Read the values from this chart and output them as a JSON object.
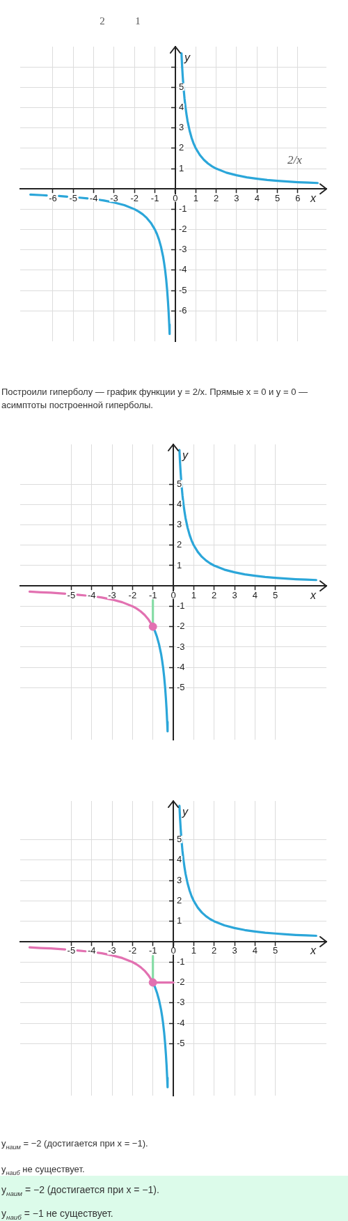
{
  "chart_data": [
    {
      "type": "other",
      "annotations": [
        "2",
        "1"
      ]
    },
    {
      "type": "line",
      "xlabel": "x",
      "ylabel": "y",
      "xlim": [
        -7.6,
        7.4
      ],
      "ylim": [
        -7.5,
        7
      ],
      "xticks": [
        -6,
        -5,
        -4,
        -3,
        -2,
        -1,
        0,
        1,
        2,
        3,
        4,
        5,
        6
      ],
      "yticks": [
        -6,
        -5,
        -4,
        -3,
        -2,
        -1,
        1,
        2,
        3,
        4,
        5,
        {
          "value": 6,
          "label": null
        }
      ],
      "grid": true,
      "series": [
        {
          "name": "2/x",
          "color": "#2ba6d9",
          "x": [
            0.3,
            0.33,
            0.36,
            0.4,
            0.45,
            0.5,
            0.55,
            0.6,
            0.7,
            0.8,
            0.9,
            1,
            1.2,
            1.4,
            1.6,
            1.8,
            2,
            2.5,
            3,
            3.5,
            4,
            4.5,
            5,
            5.5,
            6,
            6.5,
            6.97
          ],
          "values": [
            6.67,
            6.06,
            5.56,
            5,
            4.44,
            4,
            3.64,
            3.33,
            2.86,
            2.5,
            2.22,
            2,
            1.67,
            1.43,
            1.25,
            1.11,
            1,
            0.8,
            0.67,
            0.57,
            0.5,
            0.44,
            0.4,
            0.36,
            0.33,
            0.31,
            0.29
          ]
        },
        {
          "color": "#2ba6d9",
          "x": [
            -7.1,
            -6.5,
            -6.3,
            -6,
            -5.7,
            -5.3,
            -5,
            -4.7,
            -4.3,
            -4,
            -3.7,
            -3.5,
            -3,
            -2.5,
            -2,
            -1.8,
            -1.6,
            -1.4,
            -1.2,
            -1,
            -0.9,
            -0.8,
            -0.7,
            -0.6,
            -0.55,
            -0.5,
            -0.45,
            -0.4,
            -0.36,
            -0.33,
            -0.3,
            -0.28
          ],
          "values": [
            -0.28,
            -0.31,
            -0.32,
            null,
            -0.35,
            -0.38,
            null,
            -0.43,
            -0.47,
            null,
            -0.54,
            -0.57,
            -0.67,
            -0.8,
            -1,
            -1.11,
            -1.25,
            -1.43,
            -1.67,
            -2,
            -2.22,
            -2.5,
            -2.86,
            -3.33,
            -3.64,
            -4,
            -4.44,
            -5,
            -5.56,
            -6.06,
            -6.67,
            -7.14
          ]
        }
      ],
      "annotations": [
        "Построили гиперболу — график функции y = 2/x. Прямые x = 0 и y = 0 — асимптоты построенной гиперболы."
      ]
    },
    {
      "type": "line",
      "xlabel": "x",
      "ylabel": "y",
      "xlim": [
        -7.5,
        7.5
      ],
      "ylim": [
        -7.55,
        6.95
      ],
      "xticks": [
        -5,
        -4,
        -3,
        -2,
        -1,
        0,
        1,
        2,
        3,
        4,
        5
      ],
      "yticks": [
        -5,
        -4,
        -3,
        -2,
        -1,
        1,
        2,
        3,
        4,
        5
      ],
      "grid": true,
      "series": [
        {
          "color": "#86dca6",
          "x": [
            -1,
            -1
          ],
          "values": [
            -0.7,
            -2
          ]
        },
        {
          "color": "#2ba6d9",
          "x": [
            0.3,
            0.33,
            0.36,
            0.4,
            0.45,
            0.5,
            0.55,
            0.6,
            0.7,
            0.8,
            0.9,
            1,
            1.2,
            1.4,
            1.6,
            1.8,
            2,
            2.5,
            3,
            3.5,
            4,
            4.5,
            5,
            5.5,
            6,
            6.5,
            7
          ],
          "values": [
            6.67,
            6.06,
            5.56,
            5,
            4.44,
            4,
            3.64,
            3.33,
            2.86,
            2.5,
            2.22,
            2,
            1.67,
            1.43,
            1.25,
            1.11,
            1,
            0.8,
            0.67,
            0.57,
            0.5,
            0.44,
            0.4,
            0.36,
            0.33,
            0.31,
            0.29
          ]
        },
        {
          "color": "#e271b1",
          "x": [
            -7.04,
            -6.5,
            -6,
            -5.3,
            -5,
            -4.7,
            -4.3,
            -4,
            -3.7,
            -3.5,
            -3,
            -2.5,
            -2,
            -1.8,
            -1.6,
            -1.4,
            -1.2,
            -1
          ],
          "values": [
            -0.28,
            -0.31,
            -0.33,
            -0.38,
            null,
            -0.43,
            -0.47,
            null,
            -0.54,
            -0.57,
            -0.67,
            -0.8,
            -1,
            -1.11,
            -1.25,
            -1.43,
            -1.67,
            -2
          ]
        },
        {
          "color": "#2ba6d9",
          "x": [
            -1,
            -0.9,
            -0.8,
            -0.7,
            -0.6,
            -0.55,
            -0.5,
            -0.45,
            -0.4,
            -0.36,
            -0.33,
            -0.3,
            -0.28
          ],
          "values": [
            -2,
            -2.22,
            -2.5,
            -2.86,
            -3.33,
            -3.64,
            -4,
            -4.44,
            -5,
            -5.56,
            -6.06,
            -6.67,
            -7.14
          ]
        },
        {
          "type": "scatter",
          "marker": "circle",
          "color": "#e271b1",
          "x": [
            -1
          ],
          "values": [
            -2
          ]
        }
      ]
    },
    {
      "type": "line",
      "xlabel": "x",
      "ylabel": "y",
      "xlim": [
        -7.5,
        7.5
      ],
      "ylim": [
        -7.55,
        6.9
      ],
      "xticks": [
        -5,
        -4,
        -3,
        -2,
        -1,
        0,
        1,
        2,
        3,
        4,
        5
      ],
      "yticks": [
        -5,
        -4,
        -3,
        -2,
        -1,
        1,
        2,
        3,
        4,
        5
      ],
      "grid": true,
      "series": [
        {
          "color": "#86dca6",
          "x": [
            -1,
            -1
          ],
          "values": [
            -0.7,
            -2
          ]
        },
        {
          "color": "#2ba6d9",
          "x": [
            0.3,
            0.33,
            0.36,
            0.4,
            0.45,
            0.5,
            0.55,
            0.6,
            0.7,
            0.8,
            0.9,
            1,
            1.2,
            1.4,
            1.6,
            1.8,
            2,
            2.5,
            3,
            3.5,
            4,
            4.5,
            5,
            5.5,
            6,
            6.5,
            7
          ],
          "values": [
            6.67,
            6.06,
            5.56,
            5,
            4.44,
            4,
            3.64,
            3.33,
            2.86,
            2.5,
            2.22,
            2,
            1.67,
            1.43,
            1.25,
            1.11,
            1,
            0.8,
            0.67,
            0.57,
            0.5,
            0.44,
            0.4,
            0.36,
            0.33,
            0.31,
            0.29
          ]
        },
        {
          "color": "#e271b1",
          "x": [
            -7.04,
            -6.5,
            -6,
            -5.3,
            -5,
            -4.7,
            -4.3,
            -4,
            -3.7,
            -3.5,
            -3,
            -2.5,
            -2,
            -1.8,
            -1.6,
            -1.4,
            -1.2,
            -1
          ],
          "values": [
            -0.28,
            -0.31,
            -0.33,
            -0.38,
            null,
            -0.43,
            -0.47,
            null,
            -0.54,
            -0.57,
            -0.67,
            -0.8,
            -1,
            -1.11,
            -1.25,
            -1.43,
            -1.67,
            -2
          ]
        },
        {
          "color": "#2ba6d9",
          "x": [
            -1,
            -0.9,
            -0.8,
            -0.7,
            -0.6,
            -0.55,
            -0.5,
            -0.45,
            -0.4,
            -0.36,
            -0.33,
            -0.3,
            -0.28
          ],
          "values": [
            -2,
            -2.22,
            -2.5,
            -2.86,
            -3.33,
            -3.64,
            -4,
            -4.44,
            -5,
            -5.56,
            -6.06,
            -6.67,
            -7.14
          ]
        },
        {
          "color": "#e271b1",
          "x": [
            -1,
            0
          ],
          "values": [
            -2,
            -2
          ]
        },
        {
          "type": "scatter",
          "marker": "circle",
          "color": "#e271b1",
          "x": [
            -1
          ],
          "values": [
            -2
          ]
        }
      ],
      "annotations": [
        "y$_{наим}$ = −2 (достигается при x = −1).",
        "y$_{наиб}$ не существует."
      ]
    },
    {
      "type": "other",
      "annotations": [
        "y$_{наим}$ = −2 (достигается при x = −1).",
        "y$_{наиб}$ = −1 не существует."
      ]
    }
  ]
}
